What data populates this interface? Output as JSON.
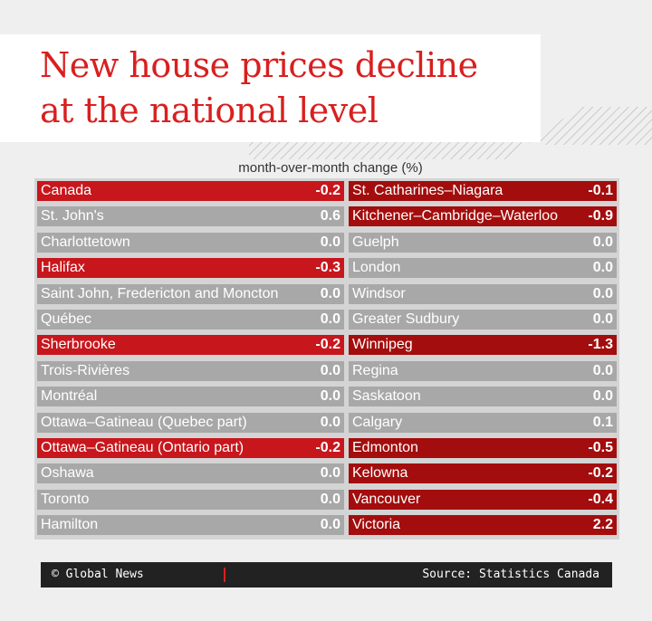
{
  "header": {
    "title_lines": [
      "New house prices decline",
      "at the national level"
    ],
    "subtitle": "month-over-month change (%)"
  },
  "table": {
    "columns": [
      [
        {
          "label": "Canada",
          "value": "-0.2",
          "highlight": true
        },
        {
          "label": "St. John's",
          "value": "0.6",
          "highlight": false
        },
        {
          "label": "Charlottetown",
          "value": "0.0",
          "highlight": false
        },
        {
          "label": "Halifax",
          "value": "-0.3",
          "highlight": true
        },
        {
          "label": "Saint John, Fredericton and Moncton",
          "value": "0.0",
          "highlight": false
        },
        {
          "label": "Québec",
          "value": "0.0",
          "highlight": false
        },
        {
          "label": "Sherbrooke",
          "value": "-0.2",
          "highlight": true
        },
        {
          "label": "Trois-Rivières",
          "value": "0.0",
          "highlight": false
        },
        {
          "label": "Montréal",
          "value": "0.0",
          "highlight": false
        },
        {
          "label": "Ottawa–Gatineau (Quebec part)",
          "value": "0.0",
          "highlight": false
        },
        {
          "label": "Ottawa–Gatineau (Ontario part)",
          "value": "-0.2",
          "highlight": true
        },
        {
          "label": "Oshawa",
          "value": "0.0",
          "highlight": false
        },
        {
          "label": "Toronto",
          "value": "0.0",
          "highlight": false
        },
        {
          "label": "Hamilton",
          "value": "0.0",
          "highlight": false
        }
      ],
      [
        {
          "label": "St. Catharines–Niagara",
          "value": "-0.1",
          "highlight": true
        },
        {
          "label": "Kitchener–Cambridge–Waterloo",
          "value": "-0.9",
          "highlight": true
        },
        {
          "label": "Guelph",
          "value": "0.0",
          "highlight": false
        },
        {
          "label": "London",
          "value": "0.0",
          "highlight": false
        },
        {
          "label": "Windsor",
          "value": "0.0",
          "highlight": false
        },
        {
          "label": "Greater Sudbury",
          "value": "0.0",
          "highlight": false
        },
        {
          "label": "Winnipeg",
          "value": "-1.3",
          "highlight": true
        },
        {
          "label": "Regina",
          "value": "0.0",
          "highlight": false
        },
        {
          "label": "Saskatoon",
          "value": "0.0",
          "highlight": false
        },
        {
          "label": "Calgary",
          "value": "0.1",
          "highlight": false
        },
        {
          "label": "Edmonton",
          "value": "-0.5",
          "highlight": true
        },
        {
          "label": "Kelowna",
          "value": "-0.2",
          "highlight": true
        },
        {
          "label": "Vancouver",
          "value": "-0.4",
          "highlight": true
        },
        {
          "label": "Victoria",
          "value": "2.2",
          "highlight": true
        }
      ]
    ]
  },
  "footer": {
    "credit": "© Global News",
    "source": "Source: Statistics Canada"
  }
}
